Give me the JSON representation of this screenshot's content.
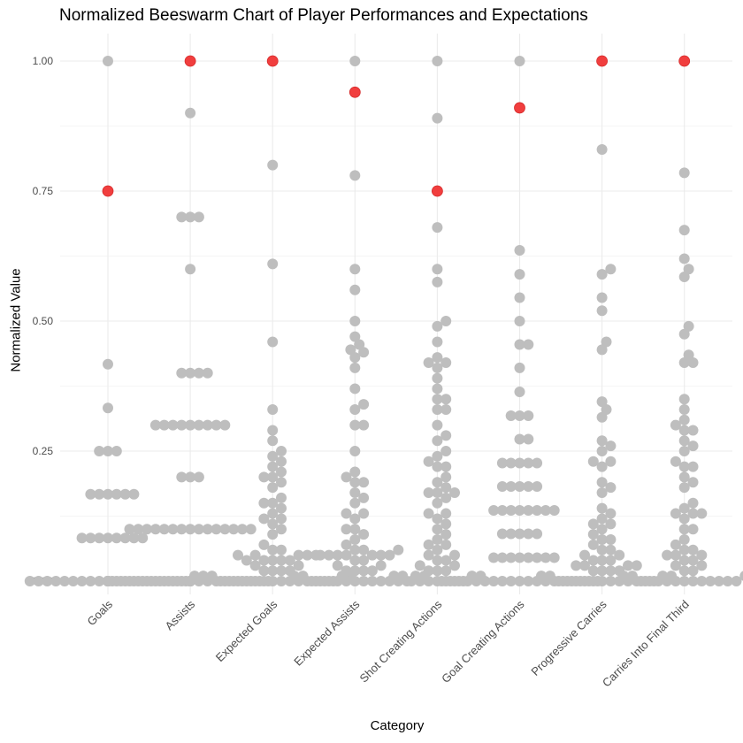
{
  "chart_data": {
    "type": "scatter",
    "subtype": "beeswarm",
    "title": "Normalized Beeswarm Chart of Player Performances and Expectations",
    "xlabel": "Category",
    "ylabel": "Normalized Value",
    "ylim": [
      0,
      1
    ],
    "yticks": [
      "0.00",
      "0.25",
      "0.50",
      "0.75",
      "1.00"
    ],
    "grid": true,
    "legend": "none",
    "colors": {
      "normal": "#bebebe",
      "highlight": "#f03434",
      "grid": "#ebebeb"
    },
    "categories": [
      "Goals",
      "Assists",
      "Expected Goals",
      "Expected Assists",
      "Shot Creating Actions",
      "Goal Creating Actions",
      "Progressive Carries",
      "Carries Into Final Third"
    ],
    "series": [
      {
        "category": "Goals",
        "highlighted": [
          0.75
        ],
        "values": [
          1.0,
          0.417,
          0.333,
          0.25,
          0.25,
          0.25,
          0.167,
          0.167,
          0.167,
          0.167,
          0.167,
          0.167,
          0.083,
          0.083,
          0.083,
          0.083,
          0.083,
          0.083,
          0.083,
          0.083,
          0,
          0,
          0,
          0,
          0,
          0,
          0,
          0,
          0,
          0,
          0,
          0,
          0,
          0,
          0,
          0,
          0,
          0,
          0,
          0,
          0,
          0,
          0,
          0,
          0,
          0,
          0,
          0,
          0,
          0,
          0,
          0,
          0,
          0,
          0,
          0,
          0
        ]
      },
      {
        "category": "Assists",
        "highlighted": [
          1.0
        ],
        "values": [
          0.9,
          0.7,
          0.7,
          0.7,
          0.6,
          0.4,
          0.4,
          0.4,
          0.4,
          0.3,
          0.3,
          0.3,
          0.3,
          0.3,
          0.3,
          0.3,
          0.3,
          0.3,
          0.2,
          0.2,
          0.2,
          0.1,
          0.1,
          0.1,
          0.1,
          0.1,
          0.1,
          0.1,
          0.1,
          0.1,
          0.1,
          0.1,
          0.1,
          0.1,
          0.1,
          0.1,
          0,
          0,
          0,
          0,
          0,
          0,
          0,
          0,
          0,
          0,
          0,
          0,
          0,
          0,
          0,
          0,
          0,
          0,
          0,
          0,
          0,
          0,
          0,
          0,
          0,
          0,
          0
        ]
      },
      {
        "category": "Expected Goals",
        "highlighted": [
          1.0
        ],
        "values": [
          0.8,
          0.61,
          0.46,
          0.33,
          0.29,
          0.27,
          0.25,
          0.24,
          0.23,
          0.22,
          0.21,
          0.2,
          0.2,
          0.19,
          0.18,
          0.16,
          0.15,
          0.15,
          0.14,
          0.13,
          0.12,
          0.12,
          0.11,
          0.1,
          0.09,
          0.07,
          0.06,
          0.06,
          0.05,
          0.05,
          0.05,
          0.05,
          0.05,
          0.04,
          0.04,
          0.04,
          0.04,
          0.04,
          0.03,
          0.03,
          0.02,
          0.02,
          0.02,
          0.02,
          0.01,
          0.01,
          0.01,
          0.01,
          0.01,
          0,
          0,
          0,
          0,
          0,
          0,
          0,
          0,
          0,
          0,
          0,
          0,
          0,
          0
        ]
      },
      {
        "category": "Expected Assists",
        "highlighted": [
          0.94
        ],
        "values": [
          1.0,
          0.78,
          0.6,
          0.56,
          0.5,
          0.47,
          0.455,
          0.445,
          0.44,
          0.43,
          0.41,
          0.37,
          0.34,
          0.33,
          0.3,
          0.3,
          0.25,
          0.21,
          0.2,
          0.19,
          0.19,
          0.17,
          0.16,
          0.15,
          0.13,
          0.13,
          0.12,
          0.1,
          0.1,
          0.09,
          0.08,
          0.07,
          0.06,
          0.06,
          0.06,
          0.05,
          0.05,
          0.05,
          0.05,
          0.05,
          0.05,
          0.05,
          0.04,
          0.04,
          0.03,
          0.03,
          0.02,
          0.02,
          0.02,
          0.02,
          0.01,
          0.01,
          0.01,
          0.01,
          0,
          0,
          0,
          0,
          0,
          0,
          0,
          0,
          0,
          0,
          0,
          0
        ]
      },
      {
        "category": "Shot Creating Actions",
        "highlighted": [
          0.75
        ],
        "values": [
          1.0,
          0.89,
          0.68,
          0.6,
          0.575,
          0.5,
          0.49,
          0.46,
          0.43,
          0.42,
          0.42,
          0.41,
          0.39,
          0.37,
          0.35,
          0.35,
          0.33,
          0.33,
          0.3,
          0.28,
          0.27,
          0.25,
          0.24,
          0.23,
          0.22,
          0.22,
          0.2,
          0.19,
          0.18,
          0.17,
          0.17,
          0.17,
          0.16,
          0.15,
          0.13,
          0.13,
          0.12,
          0.11,
          0.1,
          0.09,
          0.08,
          0.07,
          0.07,
          0.06,
          0.05,
          0.05,
          0.04,
          0.04,
          0.03,
          0.03,
          0.02,
          0.02,
          0.02,
          0.01,
          0.01,
          0.01,
          0.01,
          0,
          0,
          0,
          0,
          0,
          0,
          0
        ]
      },
      {
        "category": "Goal Creating Actions",
        "highlighted": [
          0.91
        ],
        "values": [
          1.0,
          0.636,
          0.59,
          0.545,
          0.5,
          0.455,
          0.455,
          0.41,
          0.364,
          0.318,
          0.318,
          0.318,
          0.273,
          0.273,
          0.227,
          0.227,
          0.227,
          0.227,
          0.227,
          0.182,
          0.182,
          0.182,
          0.182,
          0.182,
          0.136,
          0.136,
          0.136,
          0.136,
          0.136,
          0.136,
          0.136,
          0.136,
          0.091,
          0.091,
          0.091,
          0.091,
          0.091,
          0.045,
          0.045,
          0.045,
          0.045,
          0.045,
          0.045,
          0.045,
          0.045,
          0,
          0,
          0,
          0,
          0,
          0,
          0,
          0,
          0,
          0,
          0,
          0,
          0,
          0,
          0,
          0,
          0,
          0,
          0
        ]
      },
      {
        "category": "Progressive Carries",
        "highlighted": [
          1.0
        ],
        "values": [
          0.83,
          0.6,
          0.59,
          0.545,
          0.52,
          0.46,
          0.445,
          0.345,
          0.33,
          0.315,
          0.27,
          0.26,
          0.25,
          0.23,
          0.23,
          0.22,
          0.19,
          0.18,
          0.17,
          0.14,
          0.13,
          0.12,
          0.11,
          0.11,
          0.1,
          0.09,
          0.08,
          0.08,
          0.07,
          0.06,
          0.06,
          0.05,
          0.05,
          0.04,
          0.04,
          0.04,
          0.03,
          0.03,
          0.03,
          0.03,
          0.02,
          0.02,
          0.02,
          0.02,
          0.01,
          0.01,
          0.01,
          0.01,
          0,
          0,
          0,
          0,
          0,
          0,
          0,
          0,
          0,
          0,
          0,
          0
        ]
      },
      {
        "category": "Carries Into Final Third",
        "highlighted": [
          1.0
        ],
        "values": [
          0.785,
          0.675,
          0.62,
          0.6,
          0.585,
          0.49,
          0.475,
          0.435,
          0.42,
          0.42,
          0.35,
          0.33,
          0.31,
          0.3,
          0.29,
          0.29,
          0.27,
          0.26,
          0.25,
          0.23,
          0.22,
          0.22,
          0.2,
          0.19,
          0.18,
          0.15,
          0.14,
          0.13,
          0.13,
          0.13,
          0.12,
          0.1,
          0.1,
          0.08,
          0.07,
          0.06,
          0.06,
          0.05,
          0.05,
          0.05,
          0.04,
          0.04,
          0.03,
          0.03,
          0.02,
          0.02,
          0.01,
          0.01,
          0.01,
          0,
          0,
          0,
          0,
          0,
          0,
          0,
          0,
          0,
          0,
          0,
          0
        ]
      }
    ]
  }
}
